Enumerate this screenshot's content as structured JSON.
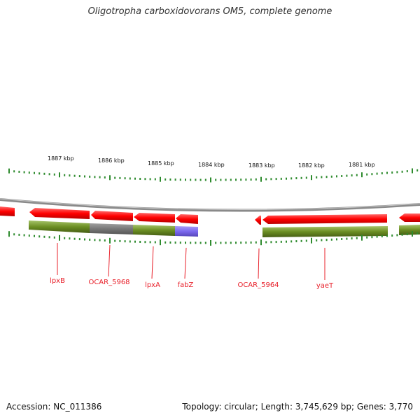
{
  "title": "Oligotropha carboxidovorans OM5, complete genome",
  "footer": {
    "accession": "Accession: NC_011386",
    "summary": "Topology: circular; Length: 3,745,629 bp; Genes: 3,770"
  },
  "colors": {
    "cds_forward_strand": "#ff0000",
    "gene": "#6b8e23",
    "pseudo_or_other": "#777777",
    "rna": "#7b68ee",
    "label": "#e8202a",
    "tick": "#2e8b2e",
    "backbone": "#8a8a8a"
  },
  "ruler": {
    "kbp_labels": [
      "1887 kbp",
      "1886 kbp",
      "1885 kbp",
      "1884 kbp",
      "1883 kbp",
      "1882 kbp",
      "1881 kbp"
    ]
  },
  "gene_labels": [
    "lpxB",
    "OCAR_5968",
    "lpxA",
    "fabZ",
    "OCAR_5964",
    "yaeT"
  ]
}
